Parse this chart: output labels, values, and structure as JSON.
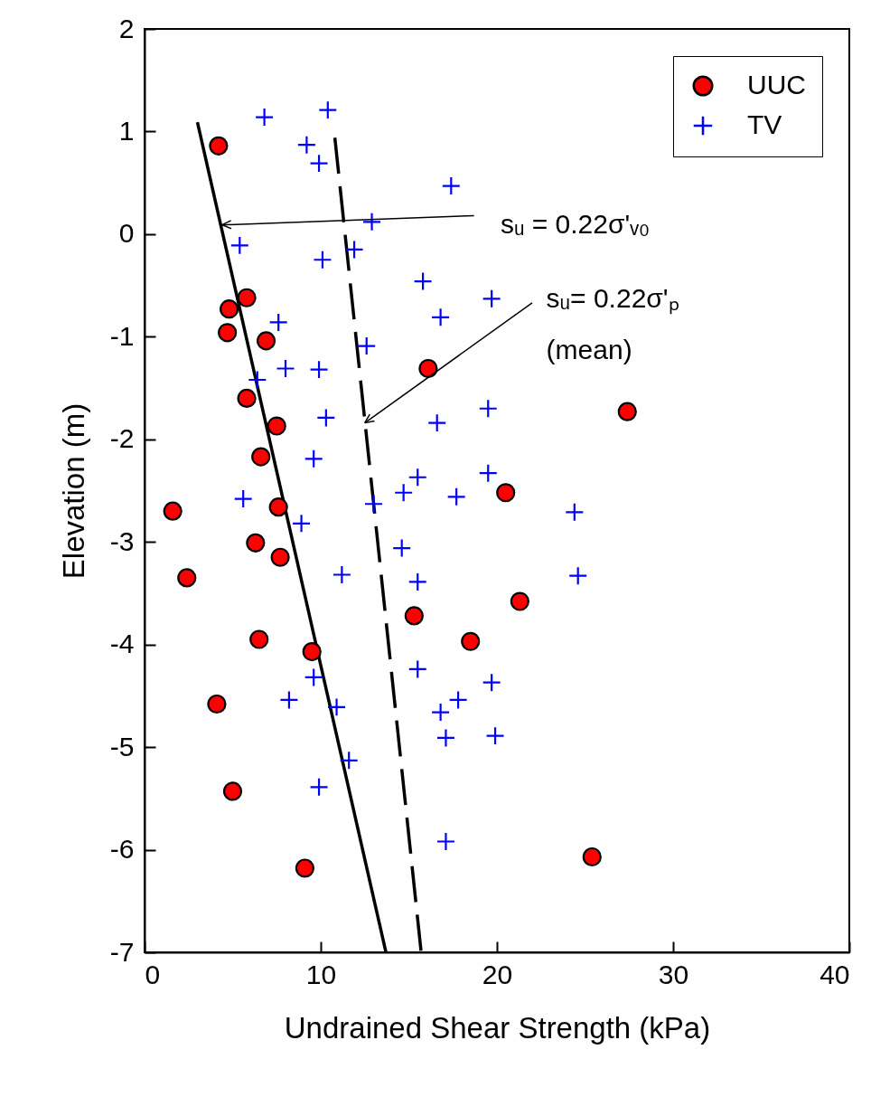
{
  "chart_data": {
    "type": "scatter",
    "xlabel": "Undrained Shear Strength (kPa)",
    "ylabel": "Elevation (m)",
    "xlim": [
      0,
      40
    ],
    "xticks": [
      0,
      10,
      20,
      30,
      40
    ],
    "ylim": [
      -7,
      2
    ],
    "yticks": [
      -7,
      -6,
      -5,
      -4,
      -3,
      -2,
      -1,
      0,
      1,
      2
    ],
    "grid": false,
    "legend": "top right",
    "series": [
      {
        "name": "UUC",
        "marker": "circle",
        "color": "#ff0000",
        "x": [
          4.2,
          5.8,
          4.8,
          4.7,
          6.9,
          16.1,
          5.8,
          7.5,
          27.4,
          6.6,
          20.5,
          1.6,
          7.6,
          6.3,
          7.7,
          2.4,
          21.3,
          15.3,
          6.5,
          18.5,
          9.5,
          4.1,
          5.0,
          25.4,
          9.1
        ],
        "values": [
          0.86,
          -0.62,
          -0.73,
          -0.96,
          -1.04,
          -1.31,
          -1.6,
          -1.87,
          -1.73,
          -2.17,
          -2.52,
          -2.7,
          -2.66,
          -3.01,
          -3.15,
          -3.35,
          -3.58,
          -3.72,
          -3.95,
          -3.97,
          -4.07,
          -4.58,
          -5.43,
          -6.07,
          -6.18
        ]
      },
      {
        "name": "TV",
        "marker": "cross",
        "color": "#0000ff",
        "x": [
          6.8,
          10.4,
          9.2,
          9.9,
          17.4,
          12.9,
          5.4,
          11.9,
          10.1,
          15.8,
          19.7,
          16.8,
          7.6,
          12.6,
          8.0,
          9.9,
          6.4,
          10.3,
          19.5,
          16.6,
          9.6,
          15.5,
          19.5,
          14.7,
          17.7,
          5.6,
          13.0,
          8.9,
          24.4,
          14.6,
          11.2,
          15.5,
          24.6,
          15.5,
          19.7,
          9.6,
          8.2,
          10.9,
          16.8,
          17.8,
          17.1,
          19.9,
          11.6,
          9.9,
          17.1
        ],
        "values": [
          1.14,
          1.21,
          0.87,
          0.69,
          0.47,
          0.12,
          -0.11,
          -0.15,
          -0.25,
          -0.46,
          -0.63,
          -0.81,
          -0.86,
          -1.09,
          -1.31,
          -1.32,
          -1.42,
          -1.79,
          -1.7,
          -1.84,
          -2.19,
          -2.37,
          -2.33,
          -2.52,
          -2.56,
          -2.58,
          -2.63,
          -2.82,
          -2.71,
          -3.06,
          -3.32,
          -3.39,
          -3.33,
          -4.24,
          -4.37,
          -4.32,
          -4.54,
          -4.61,
          -4.66,
          -4.54,
          -4.91,
          -4.89,
          -5.13,
          -5.39,
          -5.92
        ]
      },
      {
        "type": "line",
        "color": "#000000",
        "line_style": "solid",
        "x": [
          3.0,
          13.7
        ],
        "values": [
          1.09,
          -7
        ]
      },
      {
        "type": "line",
        "color": "#000000",
        "line_style": "dashed",
        "x": [
          10.8,
          15.7
        ],
        "values": [
          0.94,
          -7
        ]
      }
    ],
    "annotations": [
      {
        "text": "sᵤ = 0.22σ'ᵥ₀",
        "x": 4.4,
        "y": 0.09
      },
      {
        "text": "sᵤ= 0.22σ'ₚ",
        "x": 12.5,
        "y": -1.84
      },
      "(mean)"
    ]
  }
}
